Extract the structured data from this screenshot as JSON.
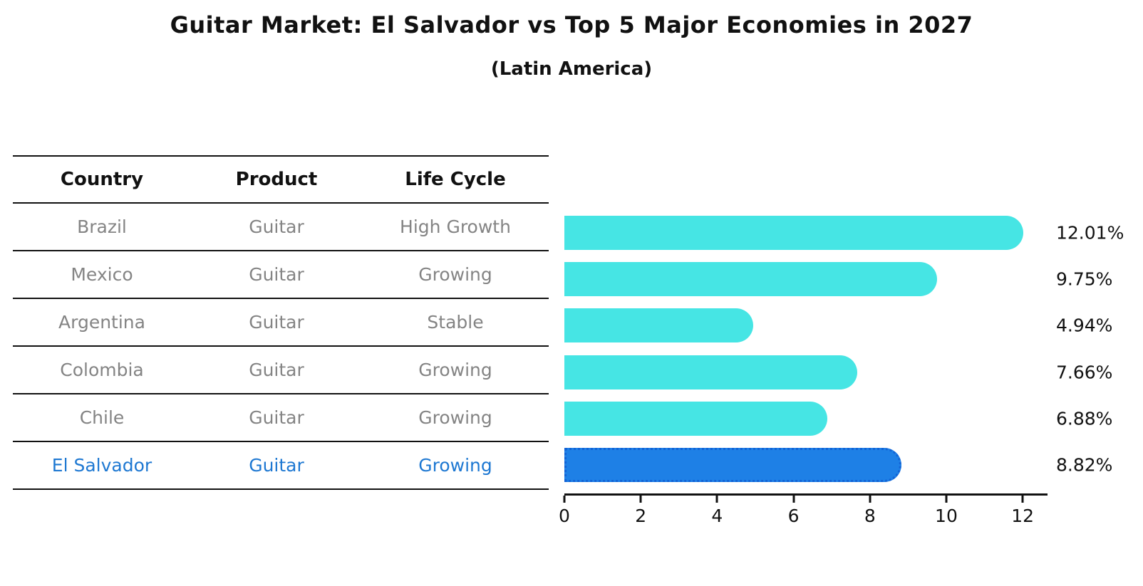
{
  "title": "Guitar Market: El Salvador vs Top 5 Major Economies in 2027",
  "subtitle": "(Latin America)",
  "table": {
    "headers": {
      "country": "Country",
      "product": "Product",
      "life_cycle": "Life Cycle"
    },
    "rows": [
      {
        "country": "Brazil",
        "product": "Guitar",
        "life_cycle": "High Growth",
        "highlight": false
      },
      {
        "country": "Mexico",
        "product": "Guitar",
        "life_cycle": "Growing",
        "highlight": false
      },
      {
        "country": "Argentina",
        "product": "Guitar",
        "life_cycle": "Stable",
        "highlight": false
      },
      {
        "country": "Colombia",
        "product": "Guitar",
        "life_cycle": "Growing",
        "highlight": false
      },
      {
        "country": "Chile",
        "product": "Guitar",
        "life_cycle": "Growing",
        "highlight": false
      },
      {
        "country": "El Salvador",
        "product": "Guitar",
        "life_cycle": "Growing",
        "highlight": true
      }
    ]
  },
  "chart_data": {
    "type": "bar",
    "orientation": "horizontal",
    "title": "Guitar Market: El Salvador vs Top 5 Major Economies in 2027",
    "subtitle": "(Latin America)",
    "categories": [
      "Brazil",
      "Mexico",
      "Argentina",
      "Colombia",
      "Chile",
      "El Salvador"
    ],
    "values": [
      12.01,
      9.75,
      4.94,
      7.66,
      6.88,
      8.82
    ],
    "value_labels": [
      "12.01%",
      "9.75%",
      "4.94%",
      "7.66%",
      "6.88%",
      "8.82%"
    ],
    "x_ticks": [
      0,
      2,
      4,
      6,
      8,
      10,
      12
    ],
    "xlim": [
      0,
      12.65
    ],
    "grid": false,
    "legend": "none",
    "bar_color": "#46E5E4",
    "highlight_color": "#1E80E6",
    "highlight_border_color": "#1263D6",
    "highlight_index": 5,
    "highlight_text_color": "#1E78D2",
    "row_text_color": "#848484",
    "axis_color": "#111111"
  }
}
